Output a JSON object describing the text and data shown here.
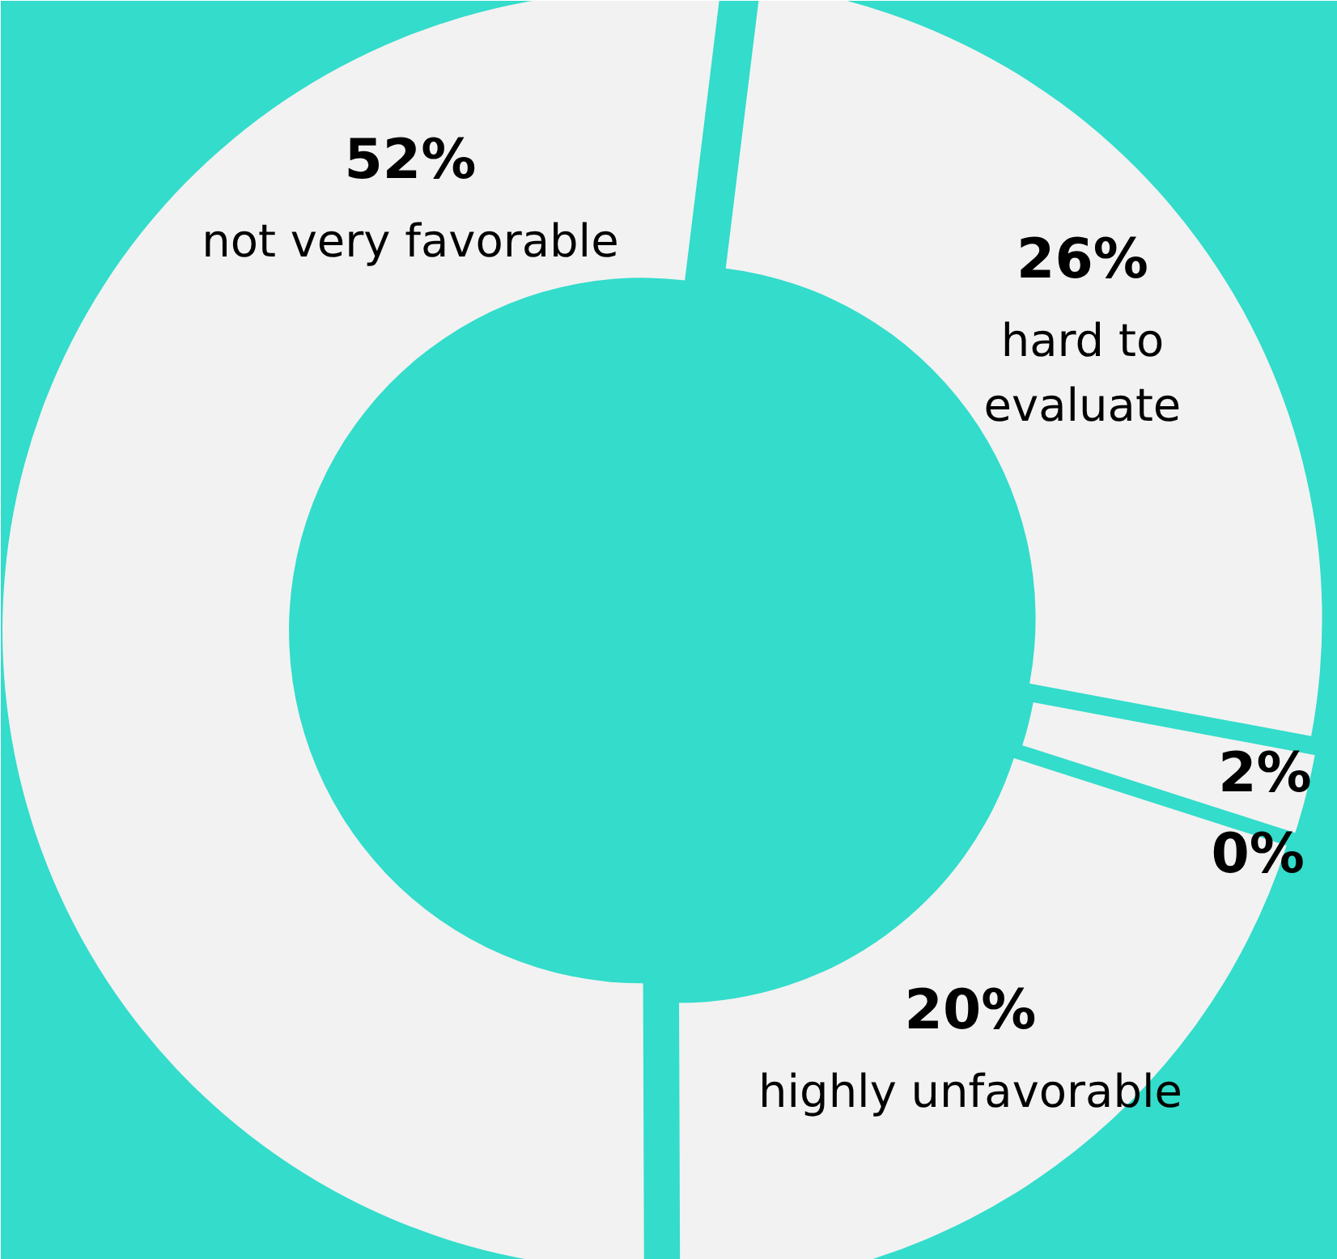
{
  "chart_data": {
    "type": "donut",
    "categories": [
      "hard to evaluate",
      null,
      null,
      "highly unfavorable",
      "not very favorable"
    ],
    "values": [
      26,
      2,
      0,
      20,
      52
    ],
    "value_labels": [
      "26%",
      "2%",
      "0%",
      "20%",
      "52%"
    ],
    "colors": [
      "#f2f2f2",
      "#f2f2f2",
      "#f2f2f2",
      "#f2f2f2",
      "#f2f2f2"
    ]
  }
}
